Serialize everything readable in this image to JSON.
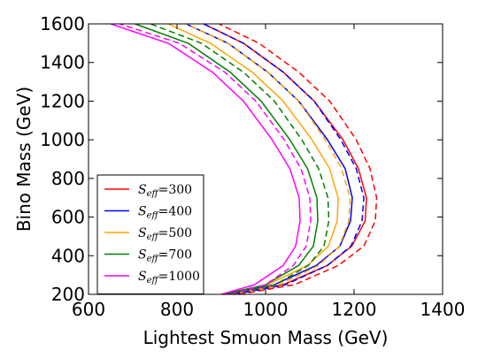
{
  "chart_data": {
    "type": "line",
    "title": "",
    "xlabel": "Lightest Smuon Mass (GeV)",
    "ylabel": "Bino Mass (GeV)",
    "xlim": [
      600,
      1400
    ],
    "ylim": [
      200,
      1600
    ],
    "x_ticks": [
      "600",
      "800",
      "1000",
      "1200",
      "1400"
    ],
    "y_ticks": [
      "200",
      "400",
      "600",
      "800",
      "1000",
      "1200",
      "1400",
      "1600"
    ],
    "grid": false,
    "legend_position": "bottom-left",
    "series": [
      {
        "name_symbol": "S",
        "name_sub": "eff",
        "name_value": "=300",
        "color": "#ff0000",
        "solid": {
          "x": [
            915,
            1040,
            1140,
            1195,
            1225,
            1228,
            1210,
            1175,
            1110,
            1040,
            950,
            860
          ],
          "y": [
            200,
            250,
            350,
            450,
            580,
            700,
            850,
            1000,
            1200,
            1350,
            1500,
            1600
          ]
        },
        "dashed": {
          "x": [
            940,
            1065,
            1165,
            1222,
            1248,
            1251,
            1236,
            1205,
            1145,
            1075,
            985,
            895
          ],
          "y": [
            200,
            250,
            350,
            450,
            580,
            700,
            850,
            1000,
            1200,
            1350,
            1500,
            1600
          ]
        }
      },
      {
        "name_symbol": "S",
        "name_sub": "eff",
        "name_value": "=400",
        "color": "#0000ff",
        "solid": {
          "x": [
            905,
            1020,
            1115,
            1168,
            1192,
            1196,
            1180,
            1140,
            1075,
            1005,
            915,
            820
          ],
          "y": [
            200,
            250,
            350,
            450,
            580,
            700,
            850,
            1000,
            1200,
            1350,
            1500,
            1600
          ]
        },
        "dashed": {
          "x": [
            930,
            1045,
            1140,
            1193,
            1218,
            1222,
            1205,
            1170,
            1110,
            1040,
            950,
            860
          ],
          "y": [
            200,
            250,
            350,
            450,
            580,
            700,
            850,
            1000,
            1200,
            1350,
            1500,
            1600
          ]
        }
      },
      {
        "name_symbol": "S",
        "name_sub": "eff",
        "name_value": "=500",
        "color": "#ffa500",
        "solid": {
          "x": [
            900,
            1005,
            1095,
            1142,
            1162,
            1164,
            1145,
            1105,
            1040,
            970,
            875,
            780
          ],
          "y": [
            200,
            250,
            350,
            450,
            580,
            700,
            850,
            1000,
            1200,
            1350,
            1500,
            1600
          ]
        },
        "dashed": {
          "x": [
            920,
            1030,
            1120,
            1167,
            1188,
            1191,
            1172,
            1135,
            1075,
            1005,
            915,
            820
          ],
          "y": [
            200,
            250,
            350,
            450,
            580,
            700,
            850,
            1000,
            1200,
            1350,
            1500,
            1600
          ]
        }
      },
      {
        "name_symbol": "S",
        "name_sub": "eff",
        "name_value": "=700",
        "color": "#008000",
        "solid": {
          "x": [
            905,
            1000,
            1075,
            1108,
            1118,
            1116,
            1095,
            1055,
            990,
            920,
            825,
            705
          ],
          "y": [
            200,
            250,
            350,
            450,
            580,
            700,
            850,
            1000,
            1200,
            1350,
            1500,
            1600
          ]
        },
        "dashed": {
          "x": [
            925,
            1022,
            1097,
            1132,
            1143,
            1141,
            1120,
            1082,
            1020,
            950,
            855,
            740
          ],
          "y": [
            200,
            250,
            350,
            450,
            580,
            700,
            850,
            1000,
            1200,
            1350,
            1500,
            1600
          ]
        }
      },
      {
        "name_symbol": "S",
        "name_sub": "eff",
        "name_value": "=1000",
        "color": "#ff00ff",
        "solid": {
          "x": [
            900,
            975,
            1040,
            1068,
            1078,
            1076,
            1055,
            1015,
            950,
            880,
            780,
            650
          ],
          "y": [
            200,
            250,
            350,
            450,
            580,
            700,
            850,
            1000,
            1200,
            1350,
            1500,
            1600
          ]
        },
        "dashed": {
          "x": [
            922,
            1000,
            1063,
            1092,
            1102,
            1100,
            1080,
            1042,
            978,
            908,
            805,
            670
          ],
          "y": [
            200,
            250,
            350,
            450,
            580,
            700,
            850,
            1000,
            1200,
            1350,
            1500,
            1600
          ]
        }
      }
    ]
  }
}
